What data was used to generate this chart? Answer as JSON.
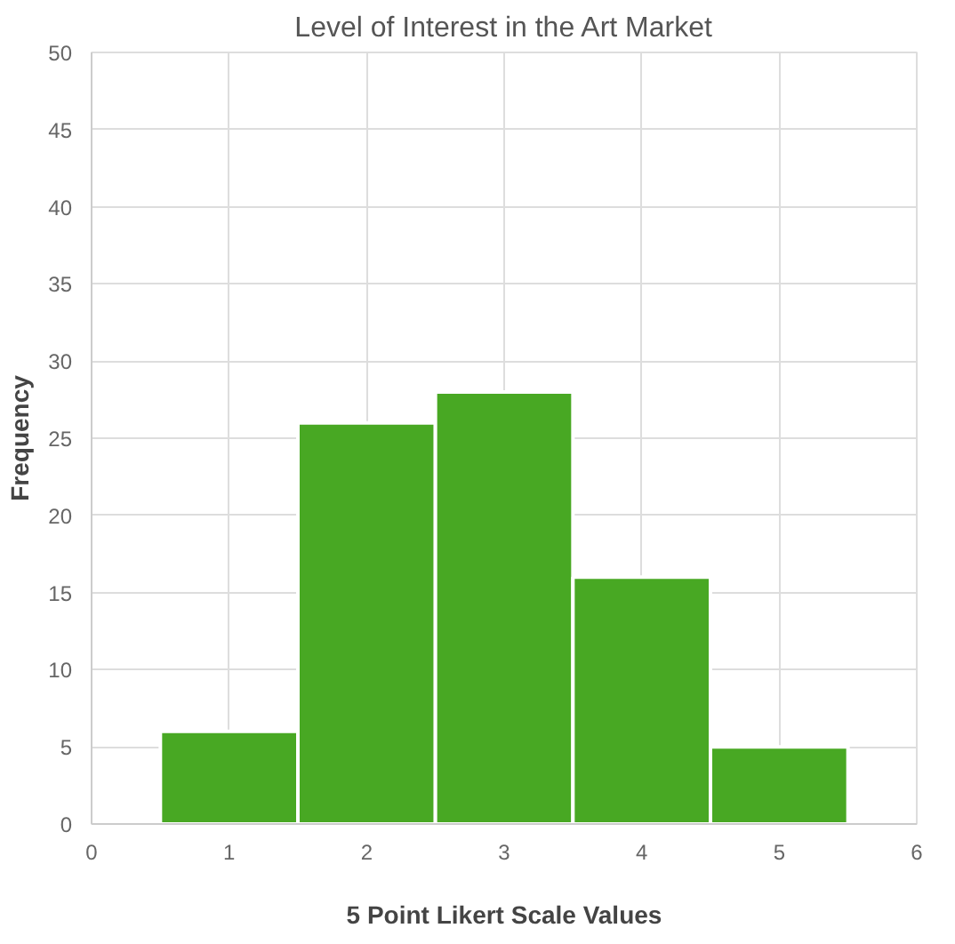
{
  "chart_data": {
    "type": "histogram",
    "title": "Level of Interest in the Art Market",
    "xlabel": "5 Point Likert Scale Values",
    "ylabel": "Frequency",
    "bins": [
      0.5,
      1.5,
      2.5,
      3.5,
      4.5,
      5.5
    ],
    "values": [
      6,
      26,
      28,
      16,
      5
    ],
    "color": "#48a823",
    "xlim": [
      0,
      6
    ],
    "xticks": [
      0,
      1,
      2,
      3,
      4,
      5,
      6
    ],
    "ylim": [
      0,
      50
    ],
    "yticks": [
      0,
      5,
      10,
      15,
      20,
      25,
      30,
      35,
      40,
      45,
      50
    ],
    "grid": true
  }
}
